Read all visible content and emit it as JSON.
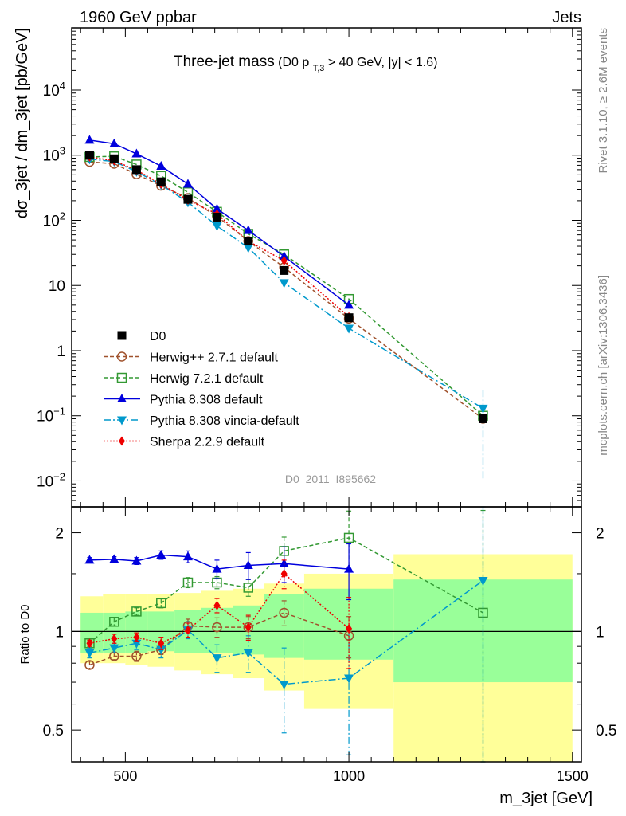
{
  "header": {
    "left": "1960 GeV ppbar",
    "right": "Jets"
  },
  "side_texts": {
    "rivet": "Rivet 3.1.10, ≥ 2.6M events",
    "mcplots": "mcplots.cern.ch [arXiv:1306.3436]"
  },
  "chart_data": {
    "type": "line",
    "title_main": "Three-jet mass",
    "title_sub_prefix": "(D0 p",
    "title_sub_subscript": "T,3",
    "title_sub_suffix": " > 40 GeV, |y| < 1.6)",
    "analysis_label": "D0_2011_I895662",
    "xlabel": "m_3jet [GeV]",
    "ylabel": "dσ_3jet / dm_3jet [pb/GeV]",
    "ratio_ylabel": "Ratio to D0",
    "x_scale": "linear",
    "xlim": [
      380,
      1520
    ],
    "xticks": [
      500,
      1000,
      1500
    ],
    "main_y_scale": "log",
    "main_ylim": [
      0.004,
      90000
    ],
    "main_yticks": [
      {
        "v": 0.01,
        "b": "10",
        "e": "−2"
      },
      {
        "v": 0.1,
        "b": "10",
        "e": "−1"
      },
      {
        "v": 1,
        "b": "1",
        "e": ""
      },
      {
        "v": 10,
        "b": "10",
        "e": ""
      },
      {
        "v": 100,
        "b": "10",
        "e": "2"
      },
      {
        "v": 1000,
        "b": "10",
        "e": "3"
      },
      {
        "v": 10000,
        "b": "10",
        "e": "4"
      }
    ],
    "ratio_y_scale": "log",
    "ratio_ylim": [
      0.4,
      2.4
    ],
    "ratio_yticks": [
      {
        "v": 0.5,
        "label": "0.5"
      },
      {
        "v": 1,
        "label": "1"
      },
      {
        "v": 2,
        "label": "2"
      }
    ],
    "x": [
      420,
      475,
      525,
      580,
      640,
      705,
      775,
      855,
      1000,
      1300
    ],
    "x_edges": [
      400,
      450,
      500,
      550,
      610,
      670,
      740,
      810,
      900,
      1100,
      1500
    ],
    "data": {
      "name": "D0",
      "values": [
        1000,
        880,
        600,
        390,
        210,
        112,
        48,
        17,
        3.2,
        0.09
      ],
      "band_stat_lo": [
        0.86,
        0.86,
        0.86,
        0.87,
        0.86,
        0.86,
        0.85,
        0.83,
        0.82,
        0.7
      ],
      "band_stat_hi": [
        1.14,
        1.14,
        1.15,
        1.15,
        1.16,
        1.18,
        1.2,
        1.3,
        1.35,
        1.44
      ],
      "band_tot_lo": [
        0.8,
        0.8,
        0.79,
        0.78,
        0.76,
        0.74,
        0.72,
        0.66,
        0.58,
        0.36
      ],
      "band_tot_hi": [
        1.28,
        1.3,
        1.3,
        1.3,
        1.31,
        1.33,
        1.35,
        1.4,
        1.5,
        1.72
      ]
    },
    "series": [
      {
        "name": "Herwig++ 2.7.1 default",
        "color": "#a0522d",
        "dash": "5,3",
        "marker": "circle-open",
        "values": [
          790,
          740,
          510,
          340,
          220,
          115,
          48,
          19,
          3.1,
          0.09
        ],
        "ratio": [
          0.79,
          0.84,
          0.84,
          0.88,
          1.04,
          1.03,
          1.03,
          1.14,
          0.97,
          null
        ],
        "ratio_err": [
          0.02,
          0.02,
          0.03,
          0.03,
          0.05,
          0.07,
          0.08,
          0.1,
          0.14,
          null
        ]
      },
      {
        "name": "Herwig 7.2.1 default",
        "color": "#339933",
        "dash": "5,3",
        "marker": "square-open",
        "values": [
          940,
          960,
          720,
          480,
          270,
          135,
          62,
          30,
          6.2,
          0.1
        ],
        "ratio": [
          0.92,
          1.07,
          1.15,
          1.22,
          1.41,
          1.41,
          1.36,
          1.76,
          1.93,
          1.14
        ],
        "ratio_err": [
          0.03,
          0.03,
          0.03,
          0.04,
          0.05,
          0.06,
          0.08,
          0.18,
          0.4,
          1.2
        ]
      },
      {
        "name": "Pythia 8.308 default",
        "color": "#0000dd",
        "dash": "",
        "marker": "triangle-up",
        "values": [
          1700,
          1500,
          1050,
          680,
          360,
          150,
          70,
          28,
          5.0,
          null
        ],
        "ratio": [
          1.65,
          1.66,
          1.64,
          1.71,
          1.69,
          1.55,
          1.59,
          1.61,
          1.55,
          null
        ],
        "ratio_err": [
          0.03,
          0.03,
          0.04,
          0.05,
          0.07,
          0.1,
          0.15,
          0.2,
          0.3,
          null
        ]
      },
      {
        "name": "Pythia 8.308 vincia-default",
        "color": "#0099cc",
        "dash": "9,3,2,3",
        "marker": "triangle-down",
        "values": [
          870,
          800,
          560,
          350,
          190,
          82,
          38,
          11,
          2.2,
          0.13
        ],
        "ratio": [
          0.86,
          0.89,
          0.92,
          0.88,
          1.01,
          0.83,
          0.86,
          0.69,
          0.72,
          1.43
        ],
        "ratio_err": [
          0.03,
          0.03,
          0.04,
          0.05,
          0.06,
          0.08,
          0.11,
          0.2,
          0.3,
          1.5
        ]
      },
      {
        "name": "Sherpa 2.2.9 default",
        "color": "#ee0000",
        "dash": "2,2",
        "marker": "diamond",
        "values": [
          940,
          820,
          590,
          360,
          205,
          125,
          48,
          24,
          3.3,
          null
        ],
        "ratio": [
          0.92,
          0.95,
          0.96,
          0.92,
          1.01,
          1.2,
          1.03,
          1.5,
          1.02,
          null
        ],
        "ratio_err": [
          0.02,
          0.03,
          0.03,
          0.04,
          0.05,
          0.06,
          0.09,
          0.15,
          0.25,
          null
        ]
      }
    ]
  }
}
